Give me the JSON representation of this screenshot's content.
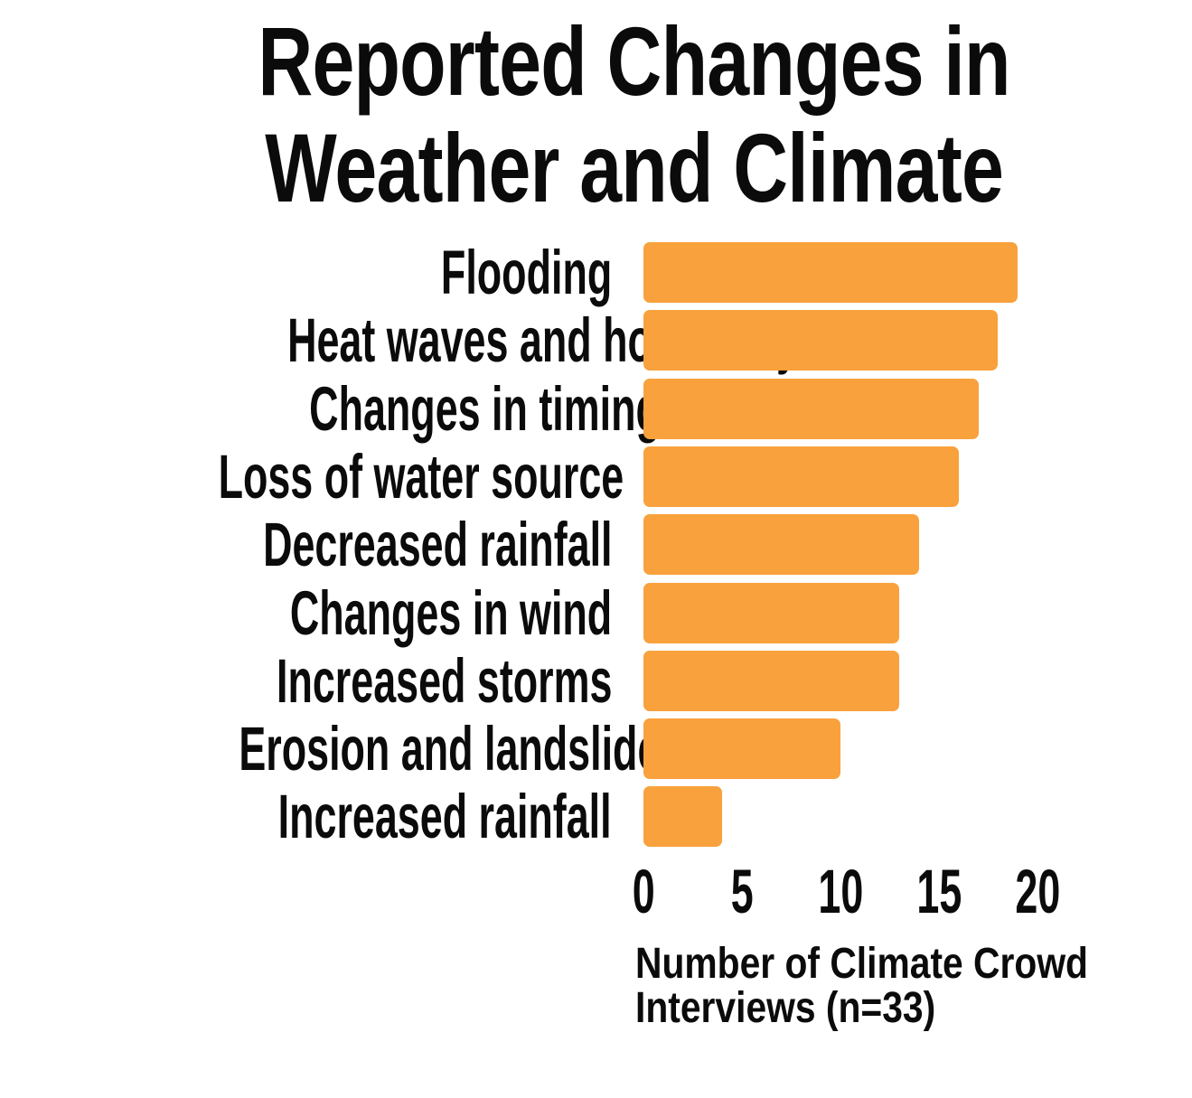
{
  "chart_data": {
    "type": "bar",
    "orientation": "horizontal",
    "title": "Reported Changes in Weather and Climate",
    "title_lines": [
      "Reported Changes in",
      "Weather and Climate"
    ],
    "categories": [
      "Flooding",
      "Heat waves and hotter days",
      "Changes in timing of seasons",
      "Loss of water source",
      "Decreased rainfall",
      "Changes in wind",
      "Increased storms",
      "Erosion and landslides",
      "Increased rainfall"
    ],
    "values": [
      19,
      18,
      17,
      16,
      14,
      13,
      13,
      10,
      4
    ],
    "x_ticks": [
      0,
      5,
      10,
      15,
      20
    ],
    "xlim": [
      0,
      20
    ],
    "xlabel": "Number of Climate Crowd Interviews (n=33)",
    "xlabel_lines": [
      "Number of Climate Crowd",
      "Interviews (n=33)"
    ],
    "grid": false,
    "legend": false,
    "bar_color": "#F9A13C",
    "text_color": "#0B0B0B",
    "background_color": "#FFFFFF"
  }
}
